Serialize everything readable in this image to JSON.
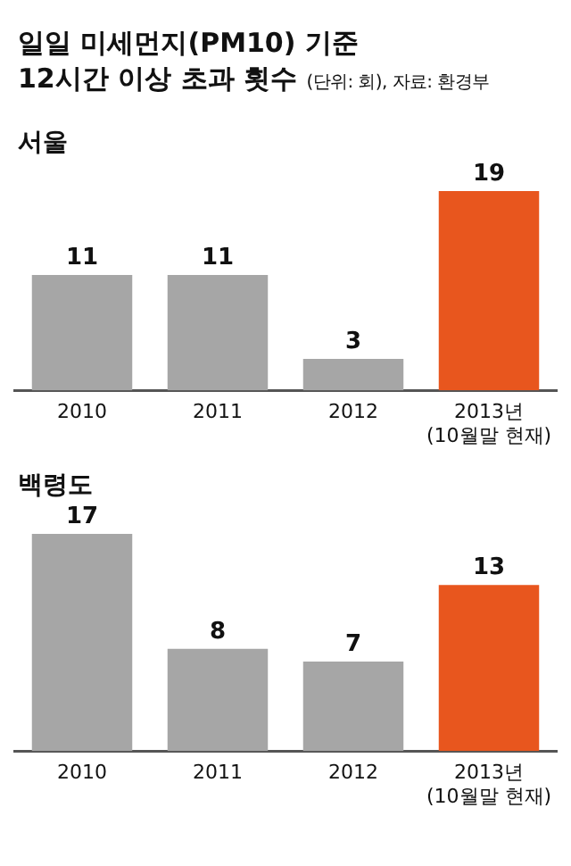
{
  "chart_data": [
    {
      "type": "bar",
      "title": "일일 미세먼지(PM10) 기준\n12시간 이상 초과 횟수",
      "subtitle": "(단위: 회), 자료: 환경부",
      "annotations": [
        "서울"
      ],
      "categories": [
        "2010",
        "2011",
        "2012",
        "2013년\n(10월말 현재)"
      ],
      "values": [
        11,
        11,
        3,
        19
      ],
      "colors": [
        "#a6a6a6",
        "#a6a6a6",
        "#a6a6a6",
        "#e8561e"
      ],
      "data_labels": true,
      "tick_labels": "x",
      "grid": false,
      "legend": false
    },
    {
      "type": "bar",
      "title": "백령도",
      "categories": [
        "2010",
        "2011",
        "2012",
        "2013년\n(10월말 현재)"
      ],
      "values": [
        17,
        8,
        7,
        13
      ],
      "colors": [
        "#a6a6a6",
        "#a6a6a6",
        "#a6a6a6",
        "#e8561e"
      ],
      "data_labels": true,
      "tick_labels": "x",
      "grid": false,
      "legend": false
    }
  ]
}
